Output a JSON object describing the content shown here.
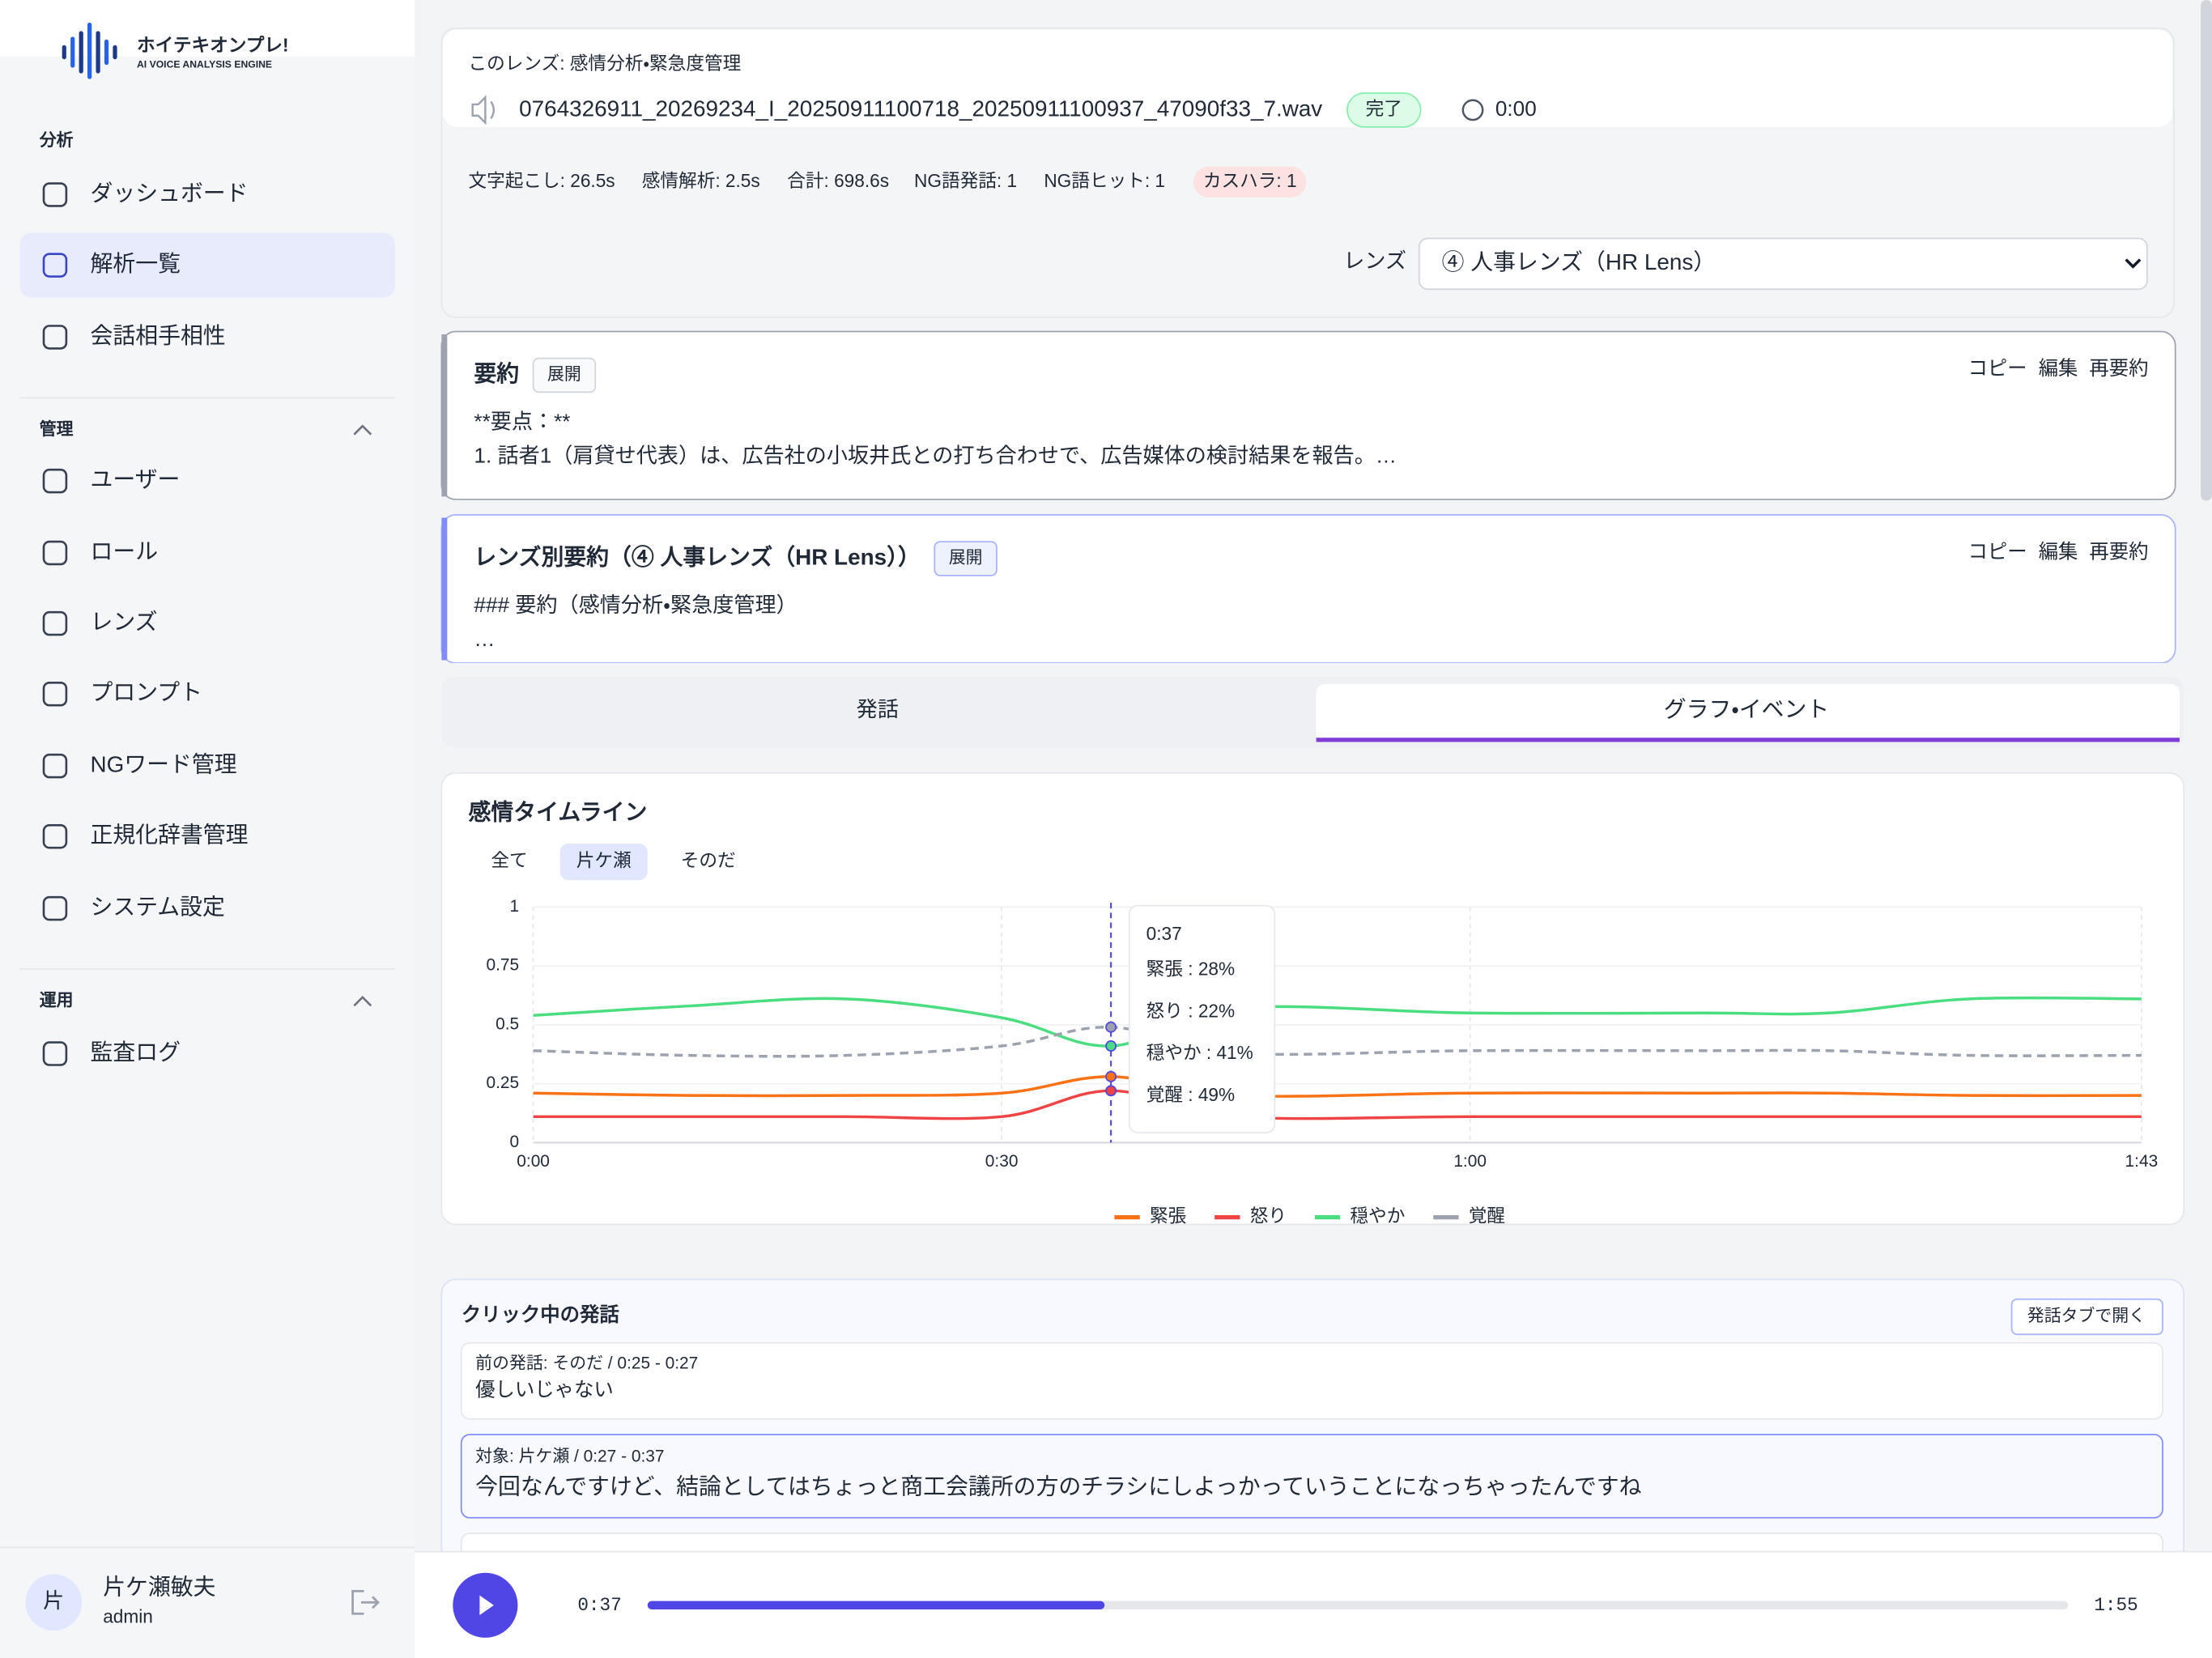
{
  "sidebar": {
    "logo_title": "ホイテキオンプレ!",
    "logo_subtitle": "AI VOICE ANALYSIS ENGINE",
    "sections": [
      {
        "label": "分析",
        "items": [
          "ダッシュボード",
          "解析一覧",
          "会話相手相性"
        ]
      },
      {
        "label": "管理",
        "items": [
          "ユーザー",
          "ロール",
          "レンズ",
          "プロンプト",
          "NGワード管理",
          "正規化辞書管理",
          "システム設定"
        ]
      },
      {
        "label": "運用",
        "items": [
          "監査ログ"
        ]
      }
    ],
    "user": {
      "avatar": "片",
      "name": "片ケ瀬敏夫",
      "role": "admin"
    }
  },
  "header": {
    "lens_note": "このレンズ: 感情分析・緊急度管理",
    "filename": "0764326911_20269234_I_20250911100718_20250911100937_47090f33_7.wav",
    "status": "完了",
    "time": "0:00",
    "stats": [
      "文字起こし: 26.5s",
      "感情解析: 2.5s",
      "合計: 698.6s"
    ],
    "ng_stats": [
      "NG語発話: 1",
      "NG語ヒット: 1"
    ],
    "kasuhara": "カスハラ: 1",
    "lens_label": "レンズ",
    "lens_value": "④ 人事レンズ（HR Lens）"
  },
  "summary": {
    "title": "要約",
    "expand": "展開",
    "actions": [
      "コピー",
      "編集",
      "再要約"
    ],
    "lines": [
      "**要点：**",
      "1. 話者1（肩貸せ代表）は、広告社の小坂井氏との打ち合わせで、広告媒体の検討結果を報告。…"
    ]
  },
  "lens_summary": {
    "title": "レンズ別要約（④ 人事レンズ（HR Lens））",
    "expand": "展開",
    "actions": [
      "コピー",
      "編集",
      "再要約"
    ],
    "lines": [
      "### 要約（感情分析・緊急度管理）",
      "…"
    ]
  },
  "tabs": [
    "発話",
    "グラフ・イベント"
  ],
  "chart_data": {
    "type": "line",
    "title": "感情タイムライン",
    "filters": [
      "全て",
      "片ケ瀬",
      "そのだ"
    ],
    "x": [
      0,
      10,
      20,
      30,
      37,
      45,
      60,
      75,
      83,
      92,
      103
    ],
    "xlim": [
      0,
      103
    ],
    "xticks": [
      {
        "value": 0,
        "label": "0:00"
      },
      {
        "value": 30,
        "label": "0:30"
      },
      {
        "value": 60,
        "label": "1:00"
      },
      {
        "value": 103,
        "label": "1:43"
      }
    ],
    "ylim": [
      0,
      1
    ],
    "yticks": [
      0,
      0.25,
      0.5,
      0.75,
      1
    ],
    "grid": true,
    "series": [
      {
        "name": "緊張",
        "color": "#f97316",
        "values": [
          0.21,
          0.2,
          0.2,
          0.21,
          0.28,
          0.2,
          0.21,
          0.21,
          0.21,
          0.2,
          0.2
        ]
      },
      {
        "name": "怒り",
        "color": "#ef4444",
        "values": [
          0.11,
          0.11,
          0.11,
          0.11,
          0.22,
          0.11,
          0.11,
          0.11,
          0.11,
          0.11,
          0.11
        ]
      },
      {
        "name": "穏やか",
        "color": "#4ade80",
        "values": [
          0.54,
          0.58,
          0.61,
          0.53,
          0.41,
          0.57,
          0.55,
          0.55,
          0.55,
          0.61,
          0.61
        ]
      },
      {
        "name": "覚醒",
        "color": "#9ca3af",
        "dashed": true,
        "values": [
          0.39,
          0.37,
          0.37,
          0.41,
          0.49,
          0.38,
          0.39,
          0.39,
          0.39,
          0.37,
          0.37
        ]
      }
    ],
    "tooltip": {
      "x": 37,
      "label": "0:37",
      "items": [
        "緊張 : 28%",
        "怒り : 22%",
        "穏やか : 41%",
        "覚醒 : 49%"
      ]
    }
  },
  "utterances": {
    "title": "クリック中の発話",
    "open_button": "発話タブで開く",
    "items": [
      {
        "meta": "前の発話: そのだ / 0:25 - 0:27",
        "text": "優しいじゃない"
      },
      {
        "meta": "対象: 片ケ瀬 / 0:27 - 0:37",
        "text": "今回なんですけど、結論としてはちょっと商工会議所の方のチラシにしよっかっていうことになっちゃったんですね"
      }
    ]
  },
  "player": {
    "current": "0:37",
    "duration": "1:55"
  }
}
